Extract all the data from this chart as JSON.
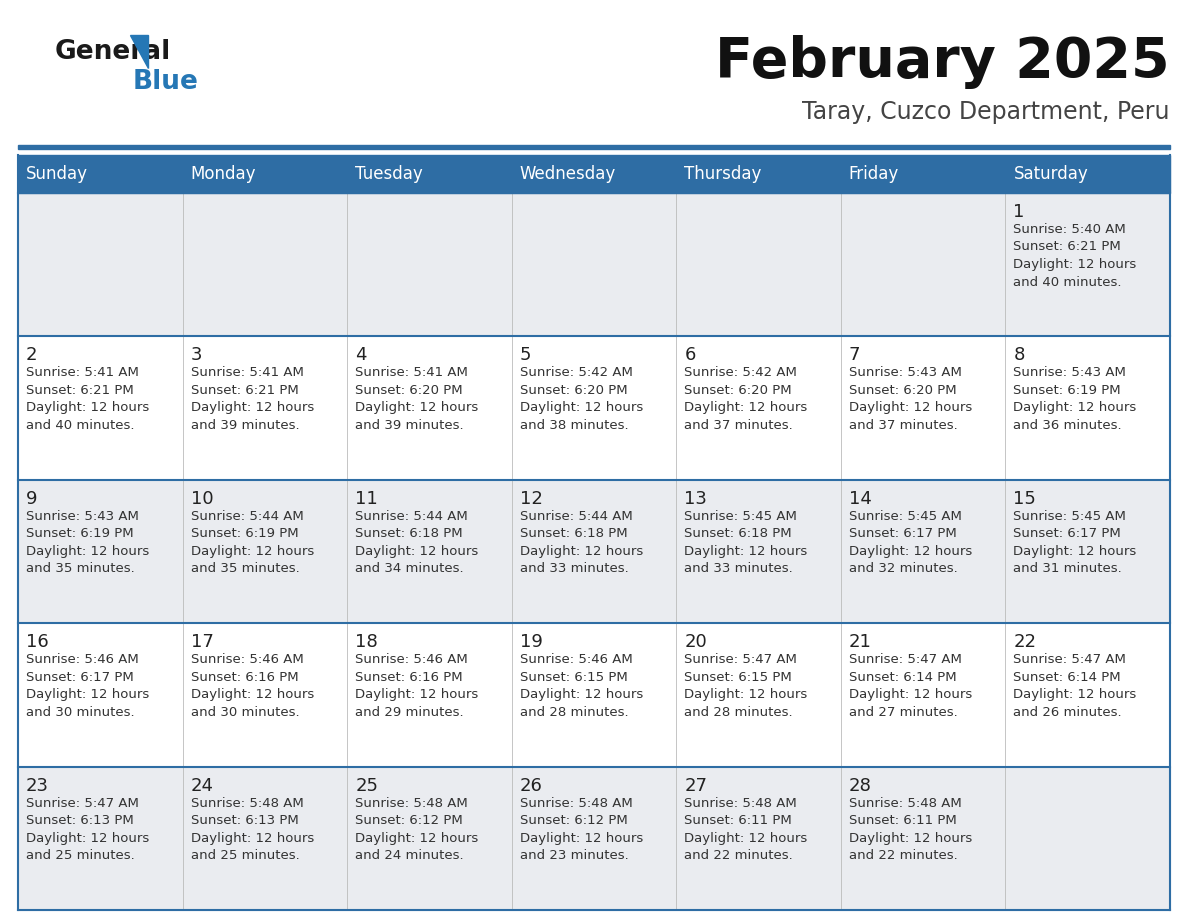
{
  "title": "February 2025",
  "subtitle": "Taray, Cuzco Department, Peru",
  "header_bg": "#2E6DA4",
  "header_text": "#FFFFFF",
  "day_names": [
    "Sunday",
    "Monday",
    "Tuesday",
    "Wednesday",
    "Thursday",
    "Friday",
    "Saturday"
  ],
  "row_bg_even": "#EAECF0",
  "row_bg_odd": "#FFFFFF",
  "cell_text_color": "#333333",
  "day_num_color": "#222222",
  "grid_line_color": "#2E6DA4",
  "title_color": "#111111",
  "subtitle_color": "#444444",
  "calendar": [
    [
      null,
      null,
      null,
      null,
      null,
      null,
      {
        "day": 1,
        "sunrise": "5:40 AM",
        "sunset": "6:21 PM",
        "daylight_suffix": "40 minutes."
      }
    ],
    [
      {
        "day": 2,
        "sunrise": "5:41 AM",
        "sunset": "6:21 PM",
        "daylight_suffix": "40 minutes."
      },
      {
        "day": 3,
        "sunrise": "5:41 AM",
        "sunset": "6:21 PM",
        "daylight_suffix": "39 minutes."
      },
      {
        "day": 4,
        "sunrise": "5:41 AM",
        "sunset": "6:20 PM",
        "daylight_suffix": "39 minutes."
      },
      {
        "day": 5,
        "sunrise": "5:42 AM",
        "sunset": "6:20 PM",
        "daylight_suffix": "38 minutes."
      },
      {
        "day": 6,
        "sunrise": "5:42 AM",
        "sunset": "6:20 PM",
        "daylight_suffix": "37 minutes."
      },
      {
        "day": 7,
        "sunrise": "5:43 AM",
        "sunset": "6:20 PM",
        "daylight_suffix": "37 minutes."
      },
      {
        "day": 8,
        "sunrise": "5:43 AM",
        "sunset": "6:19 PM",
        "daylight_suffix": "36 minutes."
      }
    ],
    [
      {
        "day": 9,
        "sunrise": "5:43 AM",
        "sunset": "6:19 PM",
        "daylight_suffix": "35 minutes."
      },
      {
        "day": 10,
        "sunrise": "5:44 AM",
        "sunset": "6:19 PM",
        "daylight_suffix": "35 minutes."
      },
      {
        "day": 11,
        "sunrise": "5:44 AM",
        "sunset": "6:18 PM",
        "daylight_suffix": "34 minutes."
      },
      {
        "day": 12,
        "sunrise": "5:44 AM",
        "sunset": "6:18 PM",
        "daylight_suffix": "33 minutes."
      },
      {
        "day": 13,
        "sunrise": "5:45 AM",
        "sunset": "6:18 PM",
        "daylight_suffix": "33 minutes."
      },
      {
        "day": 14,
        "sunrise": "5:45 AM",
        "sunset": "6:17 PM",
        "daylight_suffix": "32 minutes."
      },
      {
        "day": 15,
        "sunrise": "5:45 AM",
        "sunset": "6:17 PM",
        "daylight_suffix": "31 minutes."
      }
    ],
    [
      {
        "day": 16,
        "sunrise": "5:46 AM",
        "sunset": "6:17 PM",
        "daylight_suffix": "30 minutes."
      },
      {
        "day": 17,
        "sunrise": "5:46 AM",
        "sunset": "6:16 PM",
        "daylight_suffix": "30 minutes."
      },
      {
        "day": 18,
        "sunrise": "5:46 AM",
        "sunset": "6:16 PM",
        "daylight_suffix": "29 minutes."
      },
      {
        "day": 19,
        "sunrise": "5:46 AM",
        "sunset": "6:15 PM",
        "daylight_suffix": "28 minutes."
      },
      {
        "day": 20,
        "sunrise": "5:47 AM",
        "sunset": "6:15 PM",
        "daylight_suffix": "28 minutes."
      },
      {
        "day": 21,
        "sunrise": "5:47 AM",
        "sunset": "6:14 PM",
        "daylight_suffix": "27 minutes."
      },
      {
        "day": 22,
        "sunrise": "5:47 AM",
        "sunset": "6:14 PM",
        "daylight_suffix": "26 minutes."
      }
    ],
    [
      {
        "day": 23,
        "sunrise": "5:47 AM",
        "sunset": "6:13 PM",
        "daylight_suffix": "25 minutes."
      },
      {
        "day": 24,
        "sunrise": "5:48 AM",
        "sunset": "6:13 PM",
        "daylight_suffix": "25 minutes."
      },
      {
        "day": 25,
        "sunrise": "5:48 AM",
        "sunset": "6:12 PM",
        "daylight_suffix": "24 minutes."
      },
      {
        "day": 26,
        "sunrise": "5:48 AM",
        "sunset": "6:12 PM",
        "daylight_suffix": "23 minutes."
      },
      {
        "day": 27,
        "sunrise": "5:48 AM",
        "sunset": "6:11 PM",
        "daylight_suffix": "22 minutes."
      },
      {
        "day": 28,
        "sunrise": "5:48 AM",
        "sunset": "6:11 PM",
        "daylight_suffix": "22 minutes."
      },
      null
    ]
  ]
}
